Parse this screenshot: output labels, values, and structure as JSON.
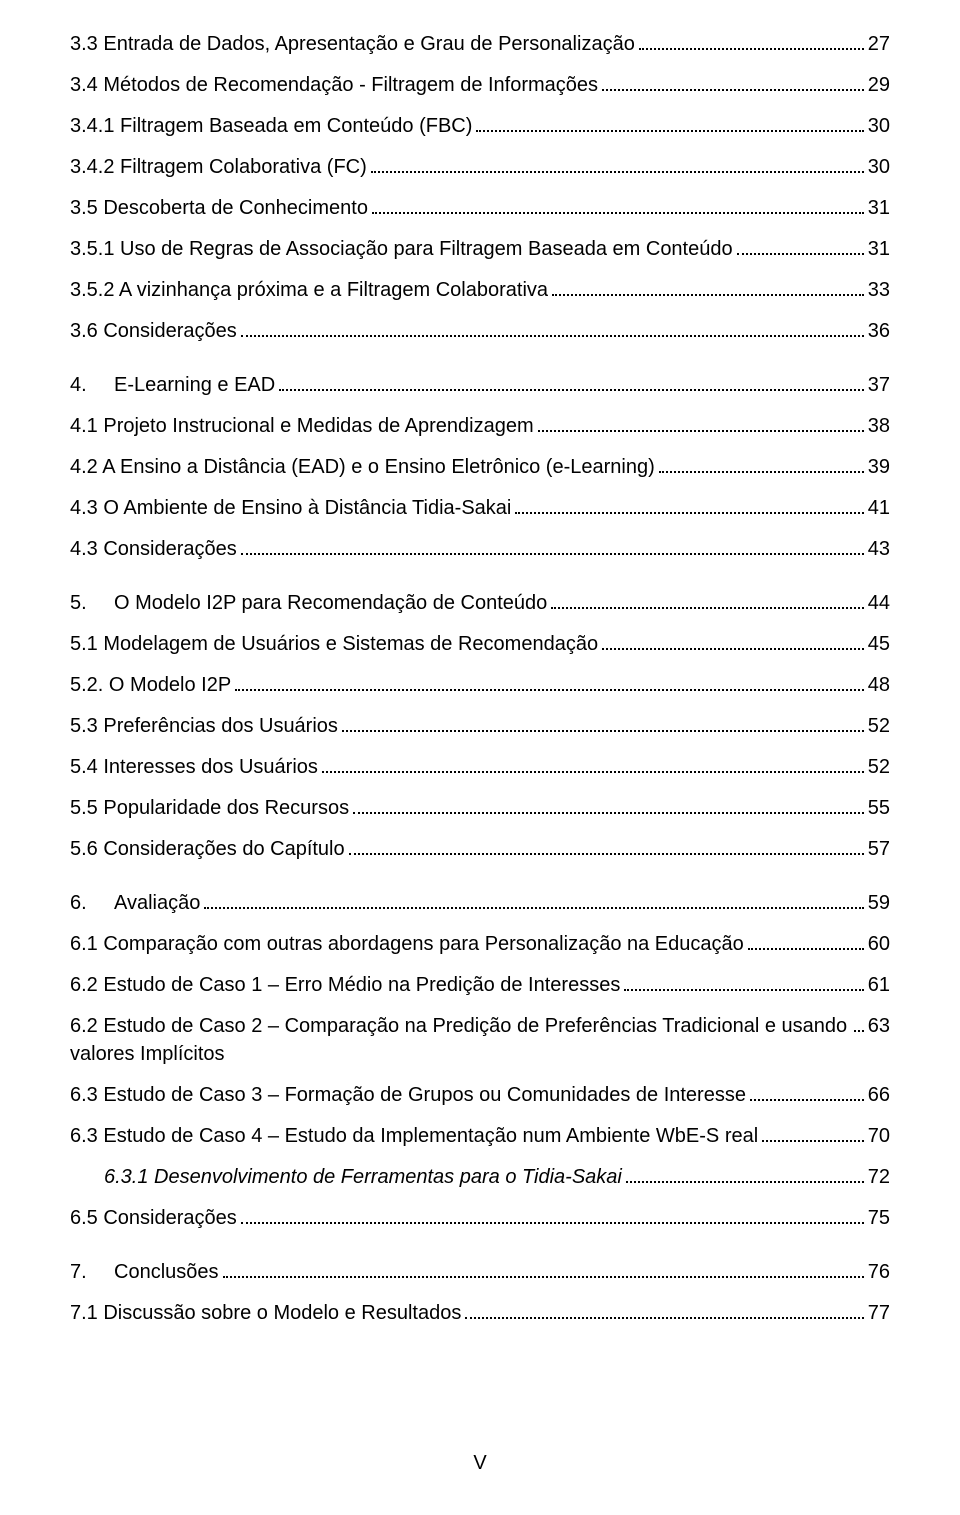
{
  "footer": "V",
  "entries": [
    {
      "level": 2,
      "text": "3.3 Entrada de Dados, Apresentação e Grau de Personalização",
      "page": "27"
    },
    {
      "level": 2,
      "text": "3.4 Métodos de Recomendação - Filtragem de Informações",
      "page": "29"
    },
    {
      "level": 2,
      "text": "3.4.1 Filtragem Baseada em Conteúdo (FBC)",
      "page": "30"
    },
    {
      "level": 2,
      "text": "3.4.2 Filtragem Colaborativa (FC)",
      "page": "30"
    },
    {
      "level": 2,
      "text": "3.5 Descoberta de Conhecimento",
      "page": "31"
    },
    {
      "level": 2,
      "text": "3.5.1 Uso de Regras de Associação para Filtragem Baseada em Conteúdo",
      "page": "31"
    },
    {
      "level": 2,
      "text": "3.5.2 A vizinhança próxima e a Filtragem Colaborativa",
      "page": "33"
    },
    {
      "level": 2,
      "text": "3.6 Considerações",
      "page": "36"
    },
    {
      "level": 1,
      "num": "4.",
      "text": "E-Learning e EAD",
      "page": "37",
      "gap": true
    },
    {
      "level": 2,
      "text": "4.1 Projeto Instrucional e Medidas de Aprendizagem",
      "page": "38"
    },
    {
      "level": 2,
      "text": "4.2 A Ensino a Distância (EAD) e o Ensino Eletrônico (e-Learning)",
      "page": "39"
    },
    {
      "level": 2,
      "text": "4.3 O Ambiente de Ensino à Distância Tidia-Sakai",
      "page": "41"
    },
    {
      "level": 2,
      "text": "4.3 Considerações",
      "page": "43"
    },
    {
      "level": 1,
      "num": "5.",
      "text": "O Modelo I2P para Recomendação de Conteúdo",
      "page": "44",
      "gap": true
    },
    {
      "level": 2,
      "text": "5.1 Modelagem de Usuários e Sistemas de Recomendação",
      "page": "45"
    },
    {
      "level": 2,
      "text": "5.2. O Modelo I2P",
      "page": "48"
    },
    {
      "level": 2,
      "text": "5.3 Preferências dos Usuários",
      "page": "52"
    },
    {
      "level": 2,
      "text": "5.4 Interesses dos Usuários",
      "page": "52"
    },
    {
      "level": 2,
      "text": "5.5 Popularidade dos Recursos",
      "page": "55"
    },
    {
      "level": 2,
      "text": "5.6 Considerações do Capítulo",
      "page": "57"
    },
    {
      "level": 1,
      "num": "6.",
      "text": "Avaliação",
      "page": "59",
      "gap": true
    },
    {
      "level": 2,
      "text": "6.1 Comparação com outras abordagens para Personalização na Educação",
      "page": "60"
    },
    {
      "level": 2,
      "text": "6.2 Estudo de Caso 1 – Erro Médio na Predição de Interesses",
      "page": "61"
    },
    {
      "level": 2,
      "text": "6.2 Estudo de Caso 2 – Comparação na Predição de Preferências Tradicional e usando valores Implícitos",
      "page": "63",
      "wrap": true
    },
    {
      "level": 2,
      "text": "6.3 Estudo de Caso 3 – Formação de Grupos ou Comunidades de Interesse",
      "page": "66"
    },
    {
      "level": 2,
      "text": "6.3 Estudo de Caso 4 – Estudo da Implementação num Ambiente WbE-S real",
      "page": "70"
    },
    {
      "level": 3,
      "text": "6.3.1 Desenvolvimento de Ferramentas para o Tidia-Sakai",
      "page": "72"
    },
    {
      "level": 2,
      "text": "6.5 Considerações",
      "page": "75"
    },
    {
      "level": 1,
      "num": "7.",
      "text": "Conclusões",
      "page": "76",
      "gap": true
    },
    {
      "level": 2,
      "text": "7.1 Discussão sobre o Modelo e Resultados",
      "page": "77"
    }
  ]
}
